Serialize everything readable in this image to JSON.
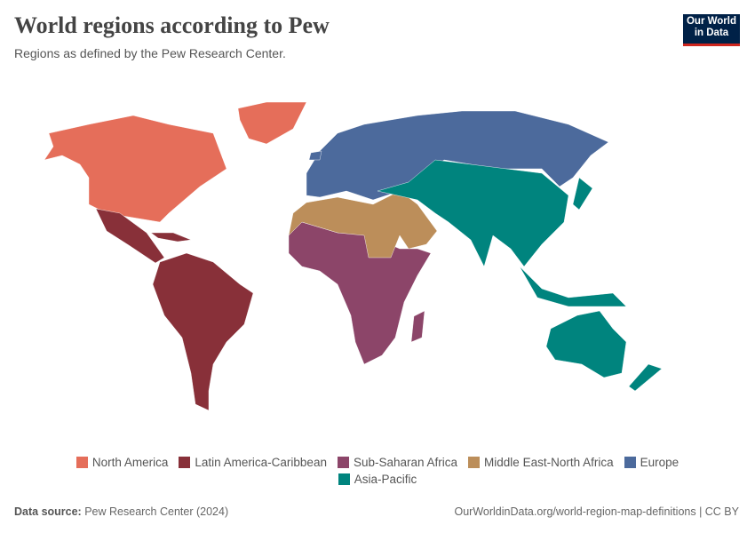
{
  "header": {
    "title": "World regions according to Pew",
    "subtitle": "Regions as defined by the Pew Research Center.",
    "logo_line1": "Our World",
    "logo_line2": "in Data"
  },
  "regions": [
    {
      "label": "North America",
      "color": "#E56E5A"
    },
    {
      "label": "Latin America-Caribbean",
      "color": "#883039"
    },
    {
      "label": "Sub-Saharan Africa",
      "color": "#8C4569"
    },
    {
      "label": "Middle East-North Africa",
      "color": "#BC8E5A"
    },
    {
      "label": "Europe",
      "color": "#4C6A9C"
    },
    {
      "label": "Asia-Pacific",
      "color": "#00847E"
    }
  ],
  "footer": {
    "source_label": "Data source:",
    "source": "Pew Research Center (2024)",
    "url": "OurWorldinData.org/world-region-map-definitions | CC BY"
  }
}
